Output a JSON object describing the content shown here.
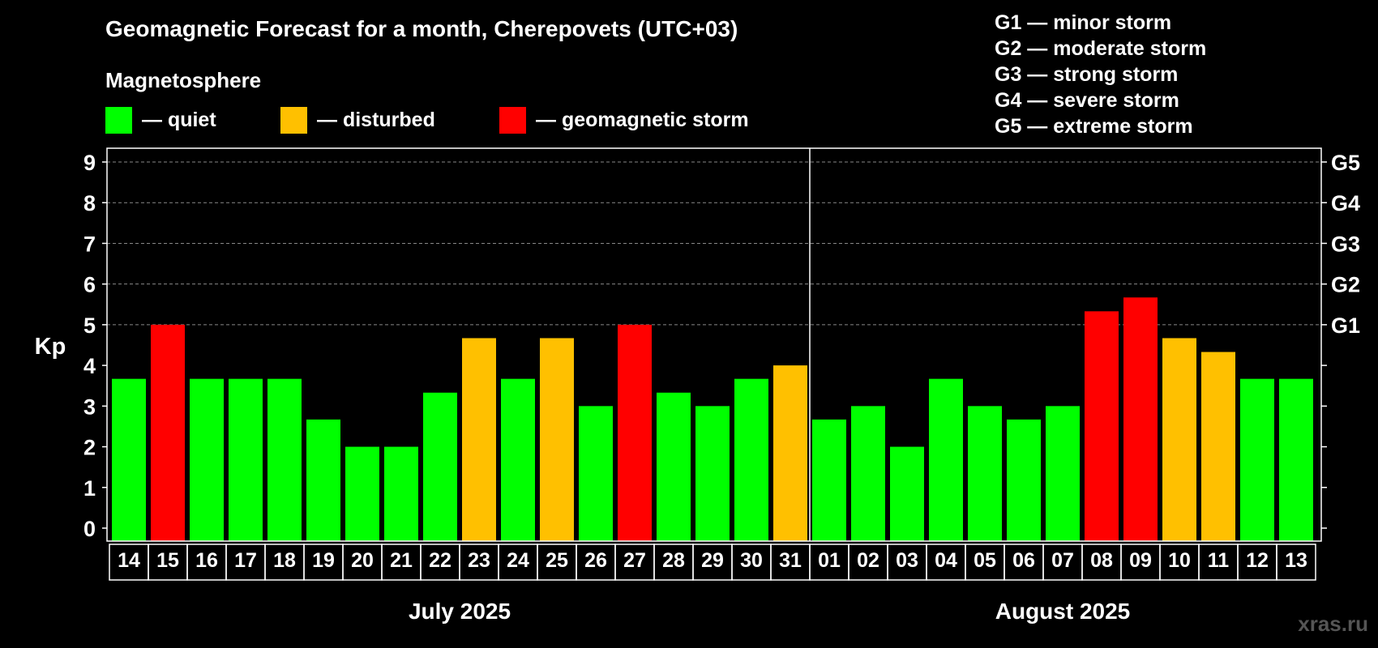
{
  "chart_data": {
    "type": "bar",
    "title": "Geomagnetic Forecast for a month, Cherepovets (UTC+03)",
    "subtitle": "Magnetosphere",
    "ylabel": "Kp",
    "ylim": [
      0,
      9
    ],
    "yticks": [
      "0",
      "1",
      "2",
      "3",
      "4",
      "5",
      "6",
      "7",
      "8",
      "9"
    ],
    "right_ticks": [
      {
        "value": 5,
        "label": "G1"
      },
      {
        "value": 6,
        "label": "G2"
      },
      {
        "value": 7,
        "label": "G3"
      },
      {
        "value": 8,
        "label": "G4"
      },
      {
        "value": 9,
        "label": "G5"
      }
    ],
    "categories": [
      "14",
      "15",
      "16",
      "17",
      "18",
      "19",
      "20",
      "21",
      "22",
      "23",
      "24",
      "25",
      "26",
      "27",
      "28",
      "29",
      "30",
      "31",
      "01",
      "02",
      "03",
      "04",
      "05",
      "06",
      "07",
      "08",
      "09",
      "10",
      "11",
      "12",
      "13"
    ],
    "values": [
      3.67,
      5,
      3.67,
      3.67,
      3.67,
      2.67,
      2,
      2,
      3.33,
      4.67,
      3.67,
      4.67,
      3,
      5,
      3.33,
      3,
      3.67,
      4,
      2.67,
      3,
      2,
      3.67,
      3,
      2.67,
      3,
      5.33,
      5.67,
      4.67,
      4.33,
      3.67,
      3.67
    ],
    "months": [
      {
        "label": "July 2025",
        "count": 18
      },
      {
        "label": "August 2025",
        "count": 13
      }
    ],
    "legend": [
      {
        "label": "— quiet",
        "color": "#00ff00"
      },
      {
        "label": "— disturbed",
        "color": "#ffc000"
      },
      {
        "label": "— geomagnetic storm",
        "color": "#ff0000"
      }
    ],
    "g_legend": [
      "G1 — minor storm",
      "G2 — moderate storm",
      "G3 — strong storm",
      "G4 — severe storm",
      "G5 — extreme storm"
    ],
    "thresholds": {
      "disturbed": 4,
      "storm": 5
    }
  },
  "watermark": "xras.ru"
}
